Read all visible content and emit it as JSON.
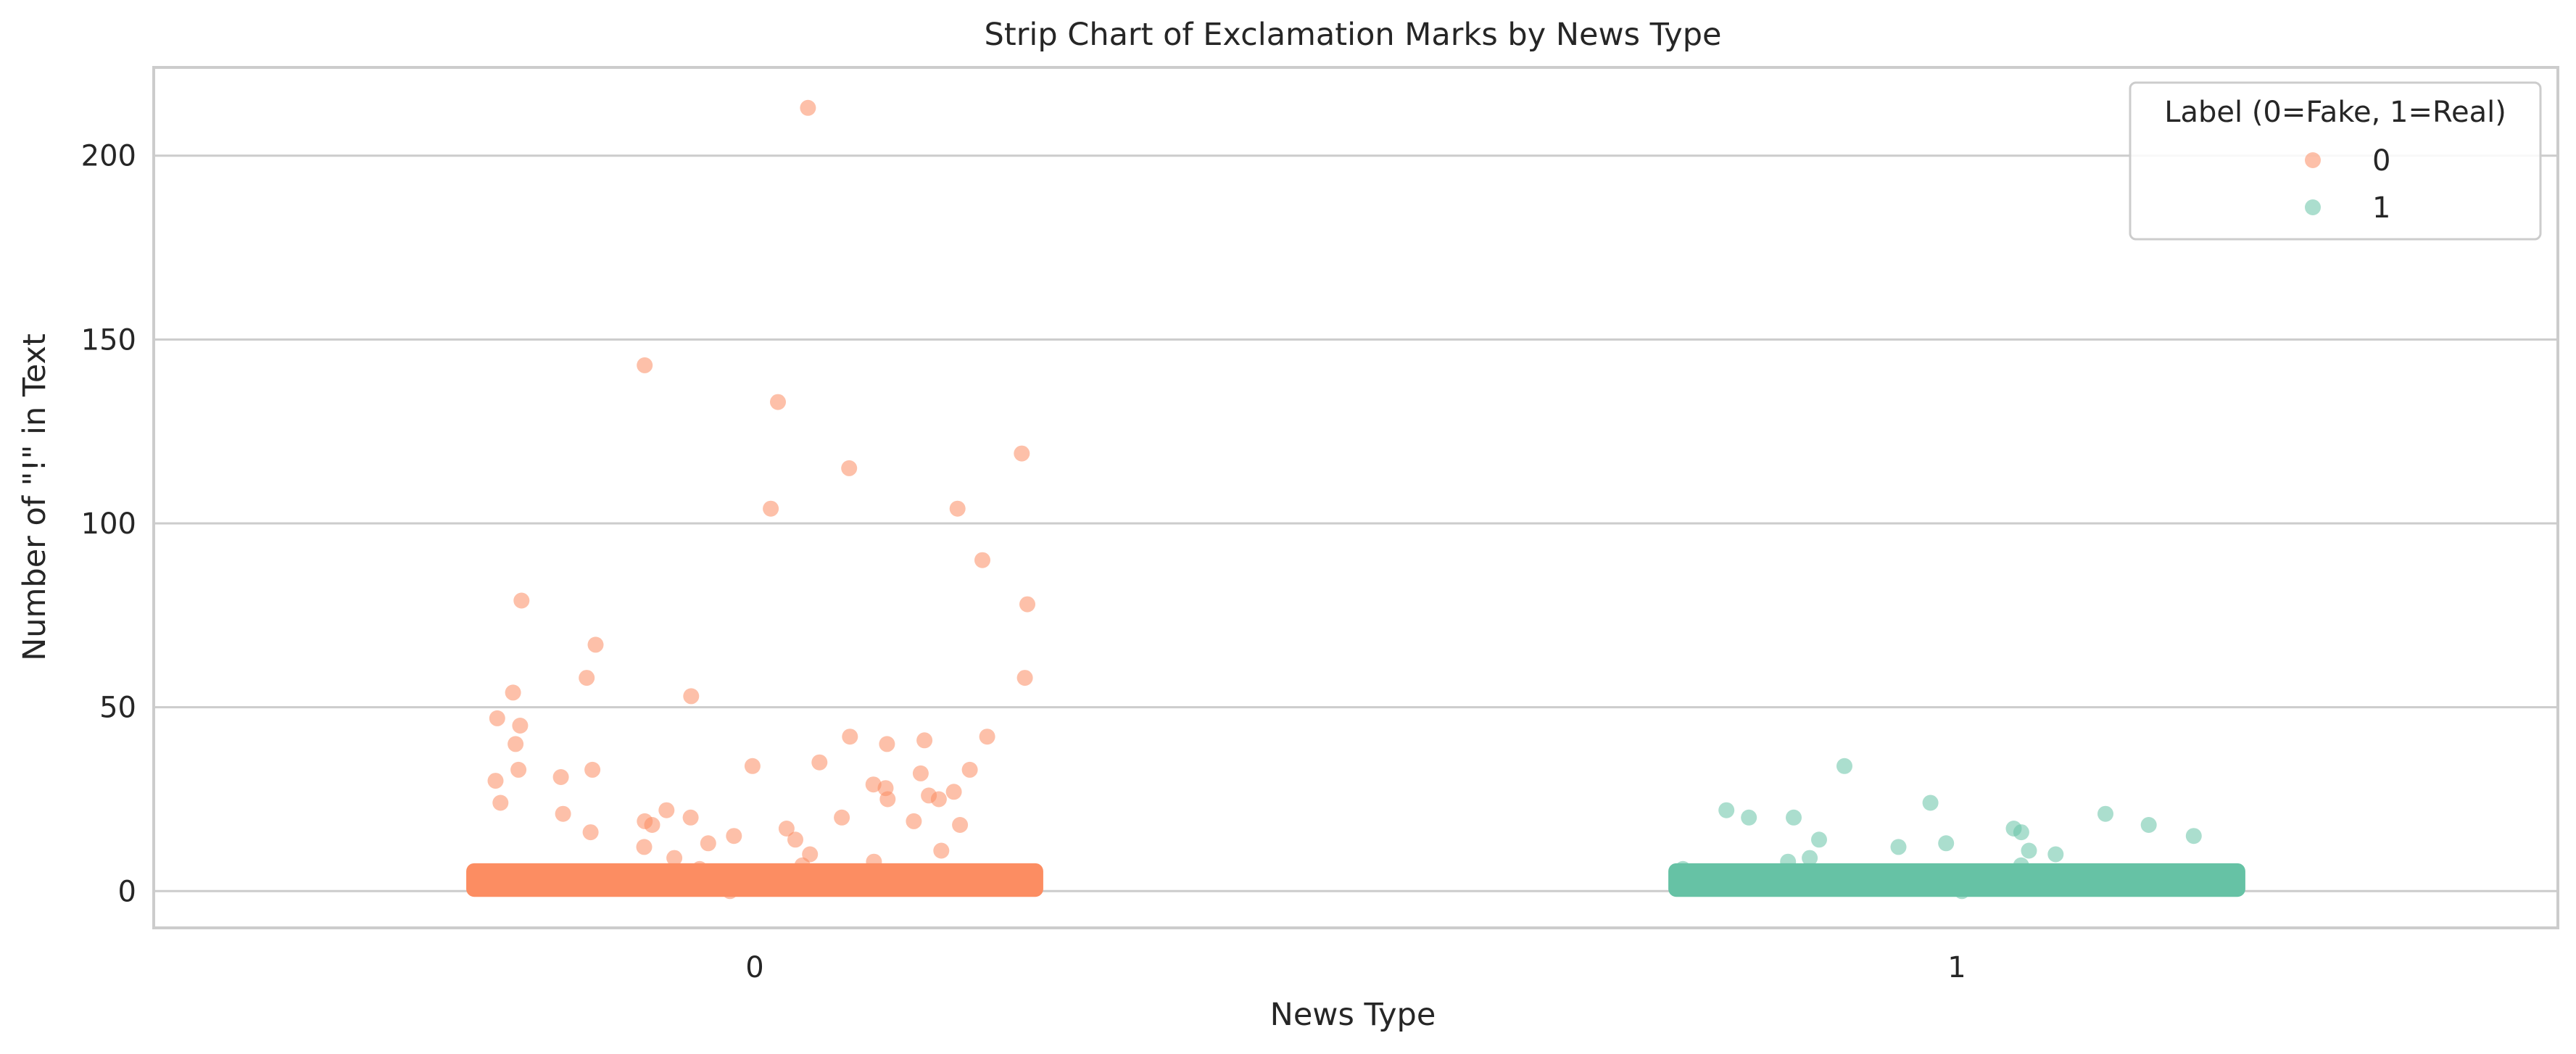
{
  "chart_data": {
    "type": "scatter",
    "subtype": "strip",
    "title": "Strip Chart of Exclamation Marks by News Type",
    "xlabel": "News Type",
    "ylabel": "Number of \"!\" in Text",
    "categories": [
      "0",
      "1"
    ],
    "ylim": [
      -10,
      224
    ],
    "yticks": [
      0,
      50,
      100,
      150,
      200
    ],
    "grid": "horizontal",
    "legend": {
      "title": "Label (0=Fake, 1=Real)",
      "placement": "top-right",
      "entries": [
        "0",
        "1"
      ]
    },
    "colors": {
      "0": "#fc8d62",
      "1": "#66c2a5"
    },
    "series": [
      {
        "name": "0",
        "category": "0",
        "values": [
          213,
          143,
          133,
          119,
          115,
          104,
          104,
          90,
          79,
          78,
          67,
          58,
          58,
          54,
          53,
          47,
          45,
          42,
          42,
          41,
          40,
          40,
          35,
          34,
          33,
          33,
          33,
          32,
          31,
          30,
          29,
          28,
          27,
          26,
          25,
          25,
          24,
          22,
          21,
          20,
          20,
          19,
          19,
          18,
          18,
          17,
          16,
          15,
          14,
          13,
          12,
          11,
          10,
          9,
          8,
          7,
          6,
          5,
          4,
          3,
          2,
          1,
          0
        ]
      },
      {
        "name": "1",
        "category": "1",
        "values": [
          34,
          24,
          22,
          21,
          20,
          20,
          18,
          17,
          16,
          15,
          14,
          13,
          12,
          11,
          10,
          9,
          8,
          7,
          6,
          5,
          4,
          3,
          2,
          1,
          0
        ]
      }
    ]
  }
}
